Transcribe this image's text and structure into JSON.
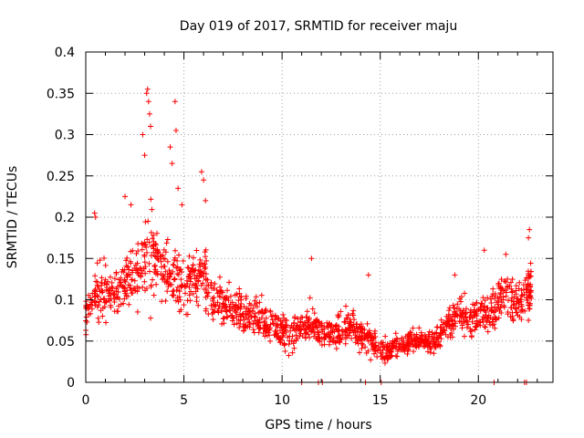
{
  "chart_data": {
    "type": "scatter",
    "title": "Day 019 of 2017, SRMTID for receiver maju",
    "xlabel": "GPS time / hours",
    "ylabel": "SRMTID / TECUs",
    "xlim": [
      0,
      23.8
    ],
    "ylim": [
      0,
      0.4
    ],
    "xticks": [
      0,
      5,
      10,
      15,
      20
    ],
    "xtick_labels": [
      "0",
      "5",
      "10",
      "15",
      "20"
    ],
    "yticks": [
      0,
      0.05,
      0.1,
      0.15,
      0.2,
      0.25,
      0.3,
      0.35,
      0.4
    ],
    "ytick_labels": [
      "0",
      "0.05",
      "0.1",
      "0.15",
      "0.2",
      "0.25",
      "0.3",
      "0.35",
      "0.4"
    ],
    "grid": true,
    "marker": "plus",
    "marker_color": "#ff0000",
    "axis_color": "#000000",
    "grid_color": "#a0a0a0",
    "envelope": {
      "description": "representative SRMTID level per hour (base) and scatter spread",
      "x": [
        0.0,
        0.5,
        1.0,
        1.5,
        2.0,
        2.5,
        3.0,
        3.5,
        4.0,
        4.5,
        5.0,
        5.5,
        6.0,
        6.5,
        7.0,
        7.5,
        8.0,
        8.5,
        9.0,
        9.5,
        10.0,
        10.5,
        11.0,
        11.5,
        12.0,
        12.5,
        13.0,
        13.5,
        14.0,
        14.5,
        15.0,
        15.5,
        16.0,
        16.5,
        17.0,
        17.5,
        18.0,
        18.5,
        19.0,
        19.5,
        20.0,
        20.5,
        21.0,
        21.5,
        22.0,
        22.5
      ],
      "base": [
        0.08,
        0.11,
        0.105,
        0.11,
        0.12,
        0.13,
        0.15,
        0.15,
        0.14,
        0.13,
        0.12,
        0.12,
        0.13,
        0.1,
        0.095,
        0.09,
        0.085,
        0.085,
        0.075,
        0.07,
        0.06,
        0.06,
        0.065,
        0.07,
        0.055,
        0.06,
        0.065,
        0.07,
        0.055,
        0.05,
        0.04,
        0.04,
        0.045,
        0.05,
        0.05,
        0.05,
        0.055,
        0.07,
        0.085,
        0.075,
        0.08,
        0.085,
        0.1,
        0.11,
        0.09,
        0.11
      ],
      "spread": [
        0.03,
        0.05,
        0.04,
        0.045,
        0.05,
        0.06,
        0.09,
        0.05,
        0.06,
        0.05,
        0.05,
        0.04,
        0.05,
        0.045,
        0.04,
        0.035,
        0.035,
        0.035,
        0.03,
        0.03,
        0.03,
        0.03,
        0.035,
        0.03,
        0.025,
        0.03,
        0.03,
        0.035,
        0.025,
        0.025,
        0.02,
        0.02,
        0.02,
        0.02,
        0.02,
        0.02,
        0.025,
        0.03,
        0.035,
        0.035,
        0.04,
        0.04,
        0.045,
        0.04,
        0.04,
        0.045
      ],
      "count_per_segment": 34
    },
    "peaks": [
      {
        "x": 0.45,
        "y": 0.205
      },
      {
        "x": 0.5,
        "y": 0.2
      },
      {
        "x": 2.0,
        "y": 0.225
      },
      {
        "x": 2.3,
        "y": 0.215
      },
      {
        "x": 2.9,
        "y": 0.3
      },
      {
        "x": 3.0,
        "y": 0.275
      },
      {
        "x": 3.1,
        "y": 0.35
      },
      {
        "x": 3.15,
        "y": 0.355
      },
      {
        "x": 3.2,
        "y": 0.34
      },
      {
        "x": 3.25,
        "y": 0.325
      },
      {
        "x": 3.3,
        "y": 0.31
      },
      {
        "x": 4.3,
        "y": 0.285
      },
      {
        "x": 4.4,
        "y": 0.265
      },
      {
        "x": 4.55,
        "y": 0.34
      },
      {
        "x": 4.6,
        "y": 0.305
      },
      {
        "x": 4.7,
        "y": 0.235
      },
      {
        "x": 4.9,
        "y": 0.215
      },
      {
        "x": 5.9,
        "y": 0.255
      },
      {
        "x": 6.0,
        "y": 0.245
      },
      {
        "x": 6.1,
        "y": 0.22
      },
      {
        "x": 11.5,
        "y": 0.15
      },
      {
        "x": 14.4,
        "y": 0.13
      },
      {
        "x": 18.8,
        "y": 0.13
      },
      {
        "x": 20.3,
        "y": 0.16
      },
      {
        "x": 21.4,
        "y": 0.155
      },
      {
        "x": 22.6,
        "y": 0.185
      },
      {
        "x": 22.55,
        "y": 0.175
      }
    ],
    "zero_points_x": [
      11.0,
      11.85,
      12.05,
      14.25,
      15.05,
      20.8,
      22.35,
      22.45
    ]
  }
}
